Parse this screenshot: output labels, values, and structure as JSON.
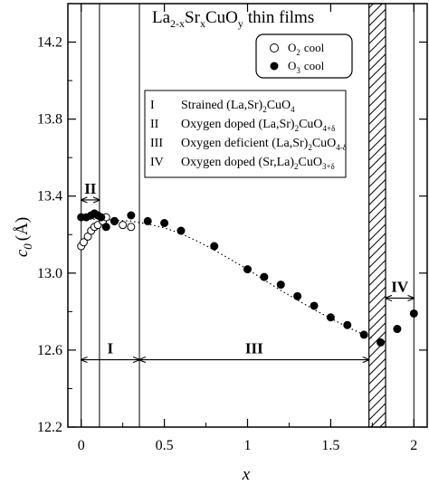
{
  "chart_data": {
    "type": "scatter",
    "title": "La2-xSrxCuOy thin films",
    "title_parts": {
      "el1": "La",
      "sub1": "2-x",
      "el2": "Sr",
      "sub2": "x",
      "el3": "CuO",
      "sub3": "y",
      "rest": "thin films"
    },
    "xlabel": "x",
    "ylabel_parts": {
      "c": "c",
      "sub": "0",
      "unit": "(Å)"
    },
    "xlim": [
      -0.08,
      2.08
    ],
    "ylim": [
      12.2,
      14.4
    ],
    "x_ticks": [
      "0",
      "0.5",
      "1",
      "1.5",
      "2"
    ],
    "x_tick_values": [
      0,
      0.5,
      1,
      1.5,
      2
    ],
    "y_ticks": [
      "12.2",
      "12.6",
      "13.0",
      "13.4",
      "13.8",
      "14.2"
    ],
    "y_tick_values": [
      12.2,
      12.6,
      13.0,
      13.4,
      13.8,
      14.2
    ],
    "grid": false,
    "legend_position": "top-right",
    "series": [
      {
        "name": "O2 cool",
        "name_parts": {
          "el": "O",
          "sub": "2",
          "rest": "cool"
        },
        "marker": "open-circle",
        "x": [
          0.0,
          0.015,
          0.04,
          0.06,
          0.08,
          0.1,
          0.13,
          0.15,
          0.2,
          0.25,
          0.3
        ],
        "y": [
          13.14,
          13.16,
          13.19,
          13.22,
          13.24,
          13.25,
          13.27,
          13.29,
          13.27,
          13.25,
          13.24
        ]
      },
      {
        "name": "O3 cool",
        "name_parts": {
          "el": "O",
          "sub": "3",
          "rest": "cool"
        },
        "marker": "filled-circle",
        "x": [
          0.0,
          0.03,
          0.06,
          0.08,
          0.1,
          0.12,
          0.15,
          0.2,
          0.3,
          0.4,
          0.5,
          0.6,
          0.8,
          1.0,
          1.1,
          1.2,
          1.3,
          1.4,
          1.5,
          1.6,
          1.7,
          1.8,
          1.9,
          2.0
        ],
        "y": [
          13.29,
          13.29,
          13.3,
          13.31,
          13.3,
          13.29,
          13.24,
          13.27,
          13.3,
          13.27,
          13.26,
          13.22,
          13.14,
          13.02,
          12.98,
          12.94,
          12.88,
          12.83,
          12.77,
          12.73,
          12.68,
          12.64,
          12.71,
          12.79
        ]
      }
    ],
    "trend_line": {
      "style": "dotted",
      "x": [
        0.0,
        0.1,
        0.2,
        0.3,
        0.4,
        0.5,
        0.6,
        0.7,
        0.8,
        0.9,
        1.0,
        1.1,
        1.2,
        1.3,
        1.4,
        1.5,
        1.6,
        1.7,
        1.76
      ],
      "y": [
        13.28,
        13.28,
        13.275,
        13.27,
        13.255,
        13.235,
        13.205,
        13.165,
        13.12,
        13.07,
        13.02,
        12.965,
        12.91,
        12.86,
        12.81,
        12.765,
        12.72,
        12.68,
        12.66
      ]
    },
    "vertical_lines_x": [
      0.0,
      0.11,
      0.35,
      2.0
    ],
    "hatched_region_x": [
      1.73,
      1.83
    ],
    "region_labels": [
      {
        "label": "II",
        "from_x": 0.0,
        "to_x": 0.11,
        "y": 13.38
      },
      {
        "label": "I",
        "from_x": 0.0,
        "to_x": 0.35,
        "y": 12.55
      },
      {
        "label": "III",
        "from_x": 0.35,
        "to_x": 1.73,
        "y": 12.55
      },
      {
        "label": "IV",
        "from_x": 1.83,
        "to_x": 2.0,
        "y": 12.87
      }
    ],
    "region_legend": [
      {
        "numeral": "I",
        "text": "Strained (La,Sr)",
        "sub1": "2",
        "text2": "CuO",
        "sub2": "4"
      },
      {
        "numeral": "II",
        "text": "Oxygen doped (La,Sr)",
        "sub1": "2",
        "text2": "CuO",
        "sub2": "4+δ"
      },
      {
        "numeral": "III",
        "text": "Oxygen deficient (La,Sr)",
        "sub1": "2",
        "text2": "CuO",
        "sub2": "4-δ"
      },
      {
        "numeral": "IV",
        "text": "Oxygen doped (Sr,La)",
        "sub1": "2",
        "text2": "CuO",
        "sub2": "3+δ"
      }
    ]
  }
}
